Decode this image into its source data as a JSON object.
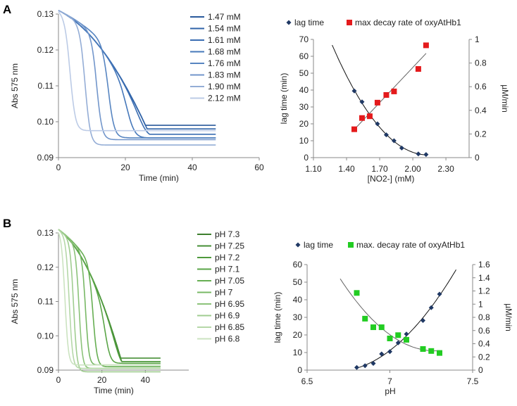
{
  "chart_data": [
    {
      "panel": "A",
      "type": "line",
      "xlabel": "Time (min)",
      "ylabel": "Abs 575 nm",
      "xlim": [
        0,
        60
      ],
      "ylim": [
        0.09,
        0.13
      ],
      "xticks": [
        "0",
        "20",
        "40",
        "60"
      ],
      "yticks": [
        "0.09",
        "0.10",
        "0.11",
        "0.12",
        "0.13"
      ],
      "legend_position": "top-right",
      "series": [
        {
          "name": "1.47 mM",
          "lag_min": 40,
          "final_abs": 0.099,
          "color": "#2a5a9c"
        },
        {
          "name": "1.54 mM",
          "lag_min": 33,
          "final_abs": 0.098,
          "color": "#2f63a8"
        },
        {
          "name": "1.61 mM",
          "lag_min": 26,
          "final_abs": 0.0965,
          "color": "#3a6db2"
        },
        {
          "name": "1.68 mM",
          "lag_min": 21,
          "final_abs": 0.0955,
          "color": "#4678ba"
        },
        {
          "name": "1.76 mM",
          "lag_min": 15,
          "final_abs": 0.0955,
          "color": "#5785c1"
        },
        {
          "name": "1.83 mM",
          "lag_min": 11.5,
          "final_abs": 0.095,
          "color": "#7296cb"
        },
        {
          "name": "1.90 mM",
          "lag_min": 8,
          "final_abs": 0.0935,
          "color": "#94add6"
        },
        {
          "name": "2.12 mM",
          "lag_min": 3.5,
          "final_abs": 0.0975,
          "color": "#bccbe6"
        }
      ]
    },
    {
      "panel": "A",
      "type": "scatter",
      "xlabel": "[NO2-] (mM)",
      "ylabel": "lag time (min)",
      "y2label": "µM/min",
      "xlim": [
        1.1,
        2.51
      ],
      "ylim": [
        0,
        70
      ],
      "y2lim": [
        0,
        1
      ],
      "xticks": [
        "1.10",
        "1.40",
        "1.70",
        "2.00",
        "2.30"
      ],
      "yticks": [
        "0",
        "10",
        "20",
        "30",
        "40",
        "50",
        "60",
        "70"
      ],
      "y2ticks": [
        "0",
        "0.2",
        "0.4",
        "0.6",
        "0.8",
        "1"
      ],
      "legend_position": "top",
      "series": [
        {
          "name": "lag time",
          "marker": "diamond",
          "color": "#1f3864",
          "x": [
            1.47,
            1.54,
            1.61,
            1.68,
            1.76,
            1.83,
            1.9,
            2.05,
            2.12
          ],
          "y": [
            39.5,
            33,
            25,
            20,
            13.5,
            10,
            5.7,
            2.2,
            1.8
          ],
          "fit": "poly2",
          "fit_range": [
            1.27,
            2.12
          ]
        },
        {
          "name": "max decay rate of oxyAtHb1",
          "marker": "square",
          "color": "#e41a1c",
          "axis": "right",
          "x": [
            1.47,
            1.54,
            1.61,
            1.68,
            1.76,
            1.83,
            2.05,
            2.12
          ],
          "y": [
            0.24,
            0.335,
            0.35,
            0.465,
            0.53,
            0.56,
            0.75,
            0.95
          ],
          "fit": "linear",
          "fit_range": [
            1.47,
            2.12
          ]
        }
      ]
    },
    {
      "panel": "B",
      "type": "line",
      "xlabel": "Time (min)",
      "ylabel": "Abs 575 nm",
      "xlim": [
        0,
        60
      ],
      "ylim": [
        0.09,
        0.13
      ],
      "xticks": [
        "0",
        "20",
        "40"
      ],
      "yticks": [
        "0.09",
        "0.10",
        "0.11",
        "0.12",
        "0.13"
      ],
      "legend_position": "right",
      "series": [
        {
          "name": "pH 7.3",
          "lag_min": 43,
          "final_abs": 0.0925,
          "color": "#3d7f2e"
        },
        {
          "name": "pH 7.25",
          "lag_min": 37,
          "final_abs": 0.0935,
          "color": "#468f36"
        },
        {
          "name": "pH 7.2",
          "lag_min": 29,
          "final_abs": 0.0925,
          "color": "#4e9a3c"
        },
        {
          "name": "pH 7.1",
          "lag_min": 22,
          "final_abs": 0.092,
          "color": "#5aa547"
        },
        {
          "name": "pH 7.05",
          "lag_min": 16,
          "final_abs": 0.091,
          "color": "#66ae52"
        },
        {
          "name": "pH 7",
          "lag_min": 12.5,
          "final_abs": 0.0915,
          "color": "#78b865"
        },
        {
          "name": "pH 6.95",
          "lag_min": 9.5,
          "final_abs": 0.0905,
          "color": "#8cc37a"
        },
        {
          "name": "pH 6.9",
          "lag_min": 7,
          "final_abs": 0.0895,
          "color": "#a0cd90"
        },
        {
          "name": "pH 6.85",
          "lag_min": 5,
          "final_abs": 0.0905,
          "color": "#b5d8a8"
        },
        {
          "name": "pH 6.8",
          "lag_min": 3,
          "final_abs": 0.0915,
          "color": "#cbe3c0"
        }
      ]
    },
    {
      "panel": "B",
      "type": "scatter",
      "xlabel": "pH",
      "ylabel": "lag time (min)",
      "y2label": "µM/min",
      "xlim": [
        6.5,
        7.5
      ],
      "ylim": [
        0,
        60
      ],
      "y2lim": [
        0,
        1.6
      ],
      "xticks": [
        "6.5",
        "7",
        "7.5"
      ],
      "yticks": [
        "0",
        "10",
        "20",
        "30",
        "40",
        "50",
        "60"
      ],
      "y2ticks": [
        "0",
        "0.2",
        "0.4",
        "0.6",
        "0.8",
        "1",
        "1.2",
        "1.4",
        "1.6"
      ],
      "legend_position": "top",
      "series": [
        {
          "name": "lag time",
          "marker": "diamond",
          "color": "#1f3864",
          "x": [
            6.8,
            6.85,
            6.9,
            6.95,
            7.0,
            7.05,
            7.1,
            7.2,
            7.25,
            7.3
          ],
          "y": [
            1.5,
            2.5,
            3.8,
            9.2,
            10.5,
            15.5,
            20.5,
            28.2,
            35.5,
            43.2
          ],
          "fit": "poly2",
          "fit_range": [
            6.8,
            7.4
          ]
        },
        {
          "name": "max. decay rate of oxyAtHb1",
          "marker": "square",
          "color": "#22cc22",
          "axis": "right",
          "x": [
            6.8,
            6.85,
            6.9,
            6.95,
            7.0,
            7.05,
            7.1,
            7.2,
            7.25,
            7.3
          ],
          "y": [
            1.17,
            0.78,
            0.65,
            0.65,
            0.48,
            0.53,
            0.46,
            0.32,
            0.29,
            0.26
          ],
          "fit": "poly2",
          "fit_range": [
            6.7,
            7.3
          ]
        }
      ]
    }
  ],
  "panel_labels": [
    "A",
    "B"
  ]
}
